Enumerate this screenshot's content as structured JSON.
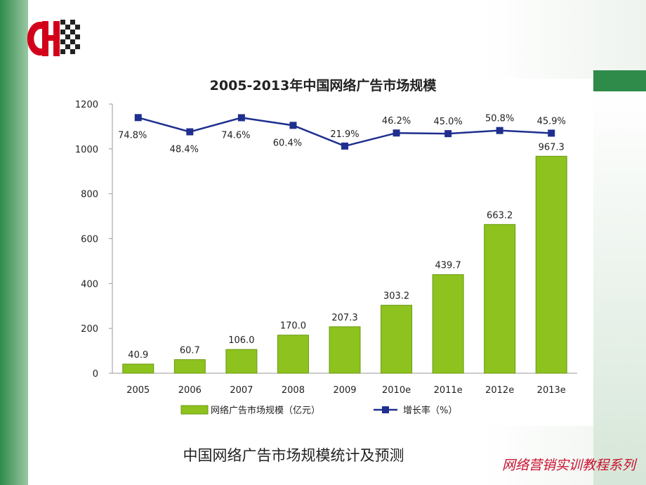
{
  "caption": "中国网络广告市场规模统计及预测",
  "footer": "网络营销实训教程系列",
  "chart_data": {
    "type": "bar-line",
    "title": "2005-2013年中国网络广告市场规模",
    "categories": [
      "2005",
      "2006",
      "2007",
      "2008",
      "2009",
      "2010e",
      "2011e",
      "2012e",
      "2013e"
    ],
    "series": [
      {
        "name": "网络广告市场规模（亿元）",
        "type": "bar",
        "color": "#8dc21f",
        "values": [
          40.9,
          60.7,
          106.0,
          170.0,
          207.3,
          303.2,
          439.7,
          663.2,
          967.3
        ],
        "value_labels": [
          "40.9",
          "60.7",
          "106.0",
          "170.0",
          "207.3",
          "303.2",
          "439.7",
          "663.2",
          "967.3"
        ]
      },
      {
        "name": "增长率（%）",
        "type": "line",
        "color": "#1f2f8f",
        "axis": "y2",
        "values": [
          74.8,
          48.4,
          74.6,
          60.4,
          21.9,
          46.2,
          45.0,
          50.8,
          45.9
        ],
        "value_labels": [
          "74.8%",
          "48.4%",
          "74.6%",
          "60.4%",
          "21.9%",
          "46.2%",
          "45.0%",
          "50.8%",
          "45.9%"
        ]
      }
    ],
    "ylim": [
      0,
      1200
    ],
    "yticks": [
      0,
      200,
      400,
      600,
      800,
      1000,
      1200
    ],
    "y2lim": [
      -400,
      100
    ],
    "legend": "bottom"
  }
}
